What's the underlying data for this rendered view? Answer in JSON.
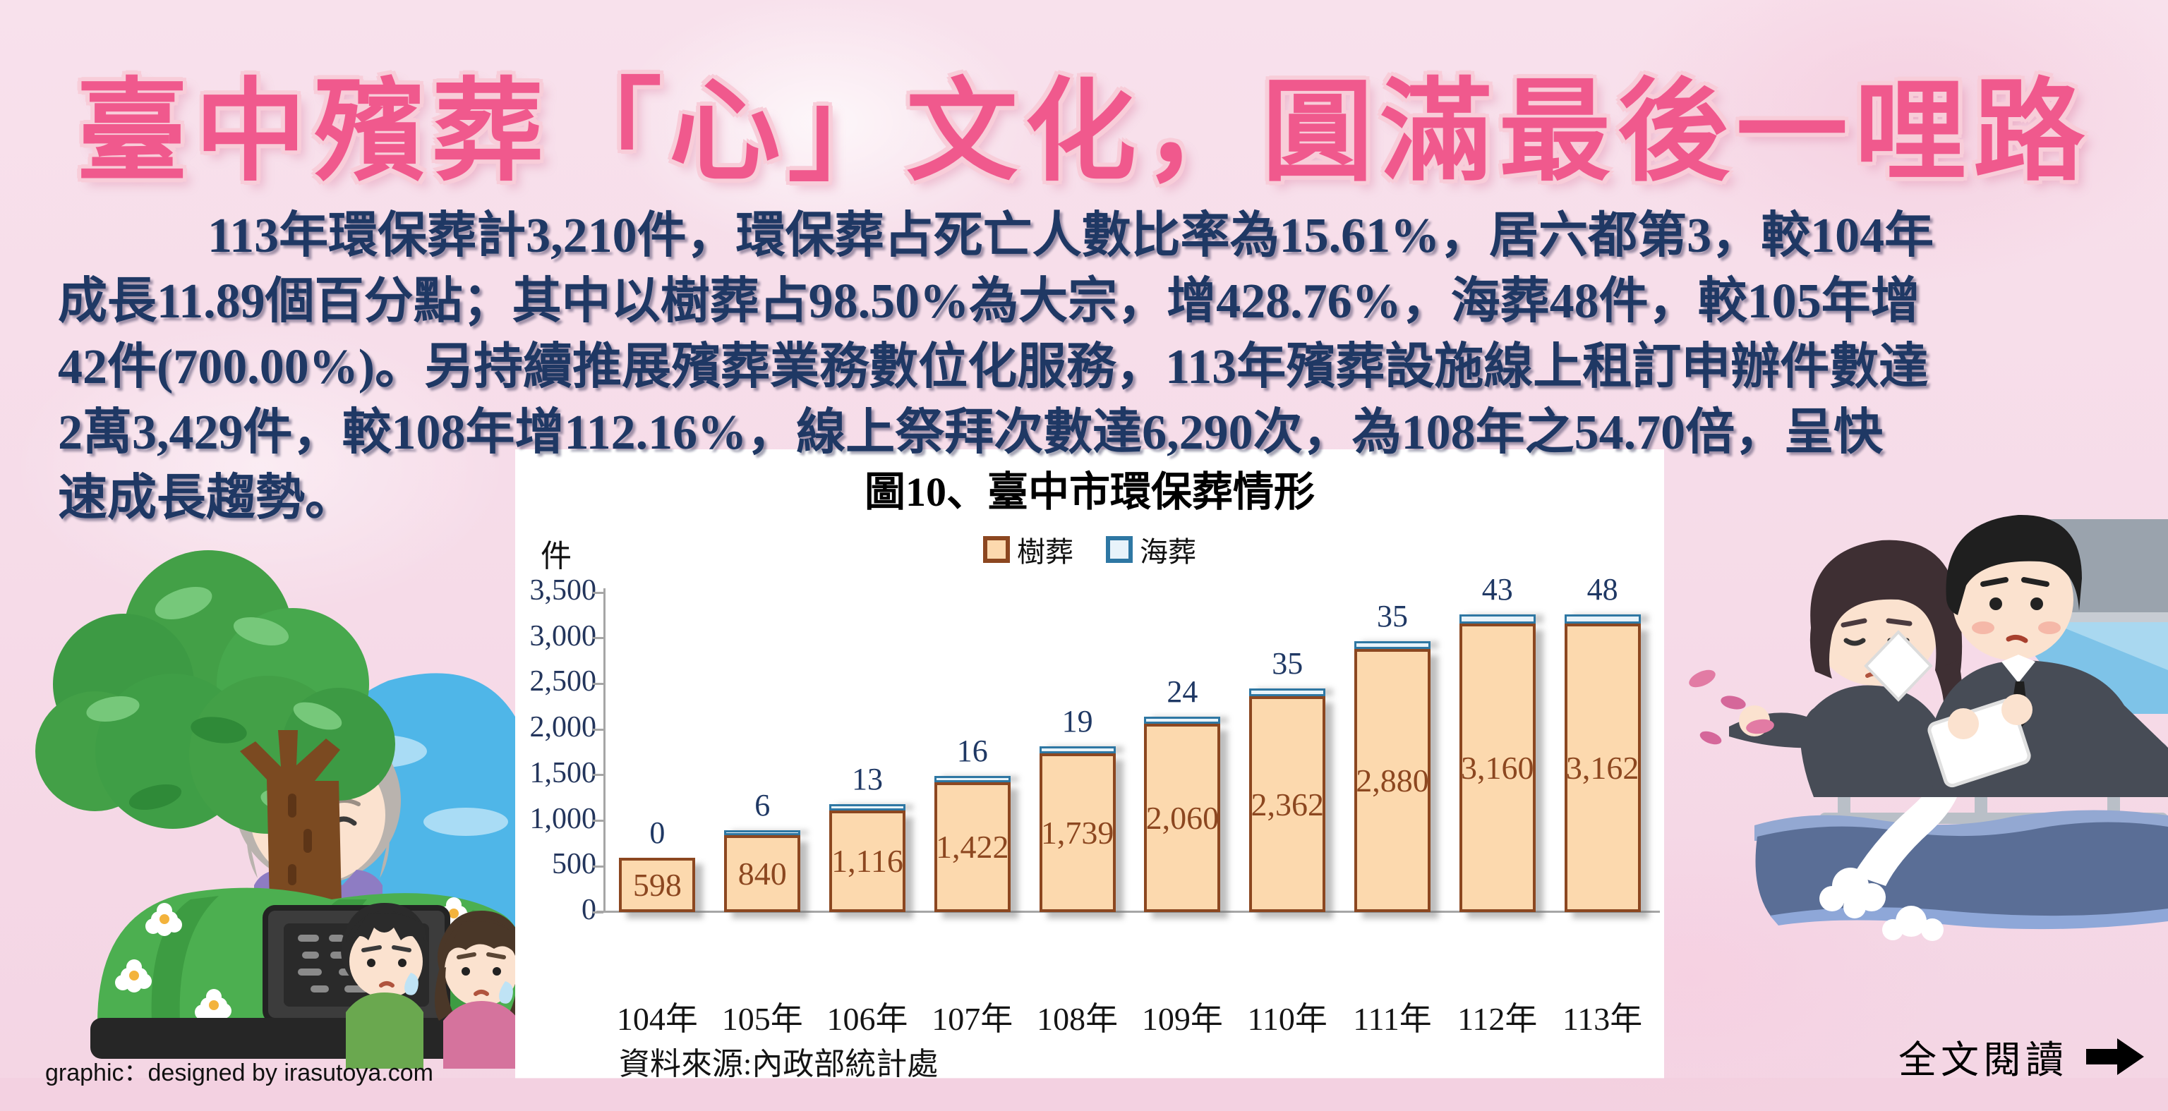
{
  "colors": {
    "title_pink": "#f0598d",
    "title_outline": "#f8cdd9",
    "paragraph_navy": "#1f3864",
    "panel_white": "#ffffff",
    "axis_gray": "#a6a6a6",
    "background_pink": "#f6dbe8"
  },
  "header": {
    "title": "臺中殯葬「心」文化，圓滿最後一哩路"
  },
  "paragraph": {
    "lines": [
      "113年環保葬計3,210件，環保葬占死亡人數比率為15.61%，居六都第3，較104年",
      "成長11.89個百分點；其中以樹葬占98.50%為大宗，增428.76%，海葬48件，較105年增",
      "42件(700.00%)。另持續推展殯葬業務數位化服務，113年殯葬設施線上租訂申辦件數達",
      "2萬3,429件，較108年增112.16%，線上祭拜次數達6,290次，為108年之54.70倍，呈快",
      "速成長趨勢。"
    ]
  },
  "chart_data": {
    "type": "bar",
    "title": "圖10、臺中市環保葬情形",
    "unit_label": "件",
    "categories": [
      "104年",
      "105年",
      "106年",
      "107年",
      "108年",
      "109年",
      "110年",
      "111年",
      "112年",
      "113年"
    ],
    "series": [
      {
        "name": "樹葬",
        "values": [
          598,
          840,
          1116,
          1422,
          1739,
          2060,
          2362,
          2880,
          3160,
          3162
        ],
        "fill": "#fcd9ae",
        "border": "#8c4720",
        "label_color": "#8c4720"
      },
      {
        "name": "海葬",
        "values": [
          0,
          6,
          13,
          16,
          19,
          24,
          35,
          35,
          43,
          48
        ],
        "fill": "#e8f3fa",
        "border": "#2e77a3",
        "label_color": "#1f3864"
      }
    ],
    "ylim": [
      0,
      3500
    ],
    "ytick_interval": 500,
    "legend_position": "top",
    "grid": false,
    "source": "資料來源:內政部統計處"
  },
  "footer": {
    "credit": "graphic：designed by irasutoya.com",
    "read_more": "全文閱讀",
    "arrow_icon": "right-arrow"
  },
  "illustrations": {
    "left": "tree-burial-memorial",
    "right": "sea-burial-ash-scattering"
  }
}
